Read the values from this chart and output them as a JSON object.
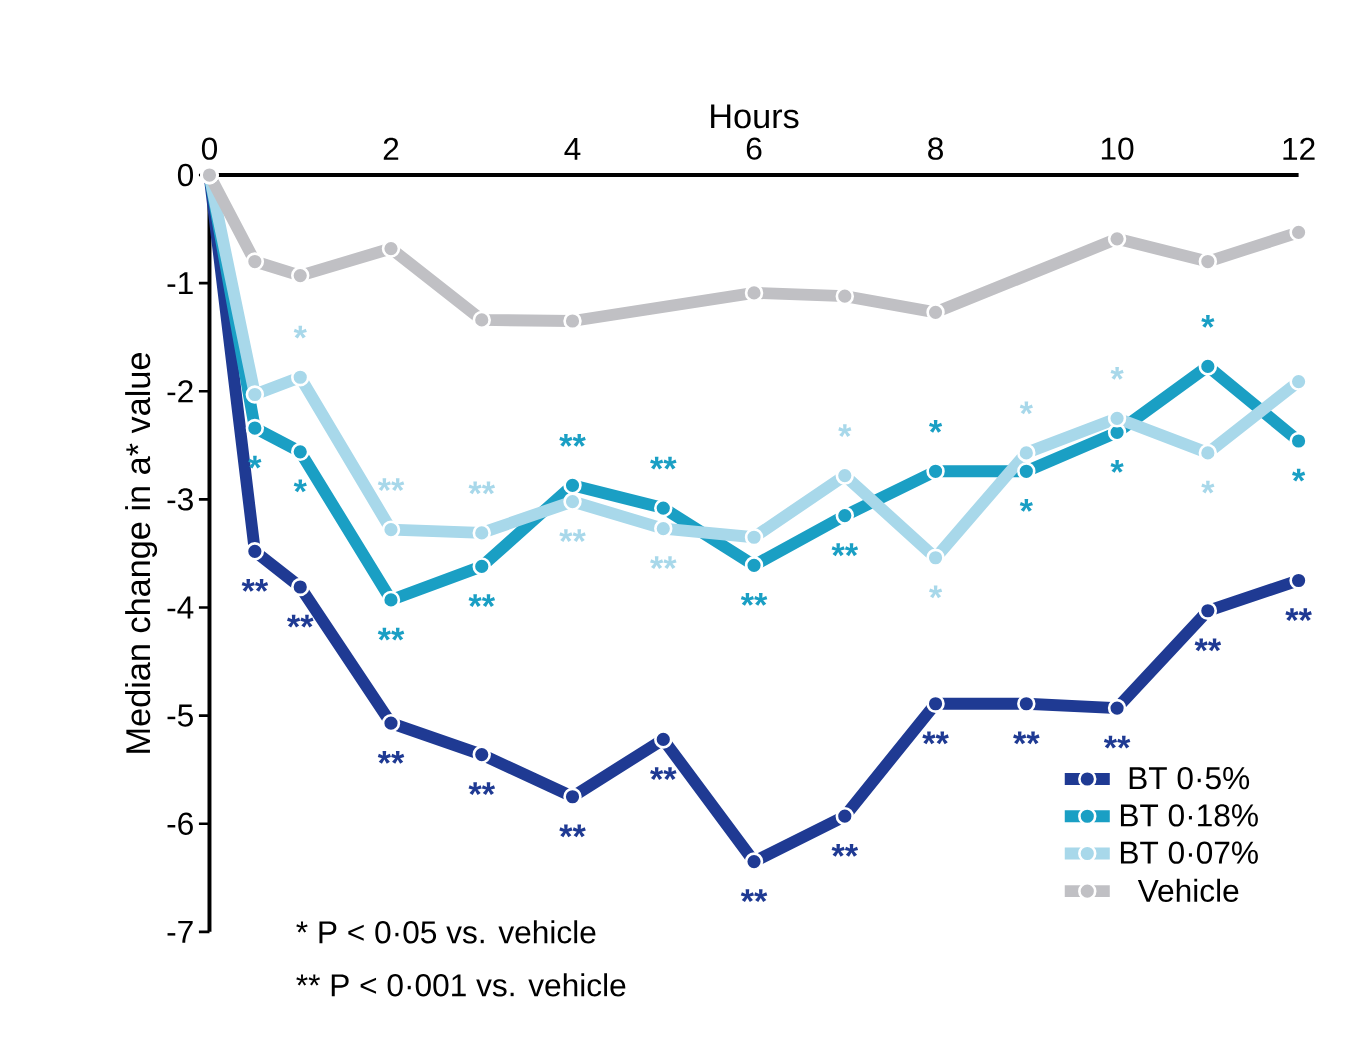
{
  "chart_data": {
    "type": "line",
    "xlabel": "Hours",
    "ylabel": "Median change in a* value",
    "x": [
      0,
      0.5,
      1,
      2,
      3,
      4,
      5,
      6,
      7,
      8,
      9,
      10,
      11,
      12
    ],
    "xlim": [
      0,
      12
    ],
    "xticks": [
      0,
      2,
      4,
      6,
      8,
      10,
      12
    ],
    "ylim": [
      -7,
      0
    ],
    "yticks": [
      -7,
      -6,
      -5,
      -4,
      -3,
      -2,
      -1,
      0
    ],
    "marker": "circle",
    "line_style": "solid",
    "legend": "bottom right",
    "grid": false,
    "series": [
      {
        "name": "BT 0·5%",
        "color": "#1f3a93",
        "values": [
          0,
          -3.48,
          -3.81,
          -5.07,
          -5.36,
          -5.75,
          -5.22,
          -6.35,
          -5.93,
          -4.89,
          -4.89,
          -4.93,
          -4.03,
          -3.75
        ]
      },
      {
        "name": "BT 0·18%",
        "color": "#1a9fc4",
        "values": [
          0,
          -2.34,
          -2.56,
          -3.93,
          -3.62,
          -2.87,
          -3.08,
          -3.61,
          -3.15,
          -2.74,
          -2.74,
          -2.38,
          -1.77,
          -2.46
        ]
      },
      {
        "name": "BT 0·07%",
        "color": "#a8d8ea",
        "values": [
          0,
          -2.03,
          -1.87,
          -3.28,
          -3.31,
          -3.02,
          -3.27,
          -3.35,
          -2.78,
          -3.54,
          -2.57,
          -2.25,
          -2.57,
          -1.91
        ]
      },
      {
        "name": "Vehicle",
        "color": "#c0c0c4",
        "x": [
          0,
          0.5,
          1,
          2,
          3,
          4,
          6,
          7,
          8,
          10,
          11,
          12
        ],
        "values": [
          0,
          -0.8,
          -0.93,
          -0.68,
          -1.34,
          -1.35,
          -1.09,
          -1.12,
          -1.27,
          -0.59,
          -0.8,
          -0.53
        ]
      }
    ],
    "annotations": [
      "* P < 0·05 vs. vehicle",
      "** P < 0·001 vs. vehicle",
      {
        "text": "**",
        "x": 0.5,
        "y": -3.48
      },
      {
        "text": "**",
        "x": 1,
        "y": -3.81
      },
      {
        "text": "**",
        "x": 2,
        "y": -5.07
      },
      {
        "text": "**",
        "x": 3,
        "y": -5.36
      },
      {
        "text": "**",
        "x": 4,
        "y": -5.75
      },
      {
        "text": "**",
        "x": 5,
        "y": -5.22
      },
      {
        "text": "**",
        "x": 6,
        "y": -6.35
      },
      {
        "text": "**",
        "x": 7,
        "y": -5.93
      },
      {
        "text": "**",
        "x": 8,
        "y": -4.89
      },
      {
        "text": "**",
        "x": 9,
        "y": -4.89
      },
      {
        "text": "**",
        "x": 10,
        "y": -4.93
      },
      {
        "text": "**",
        "x": 11,
        "y": -4.03
      },
      {
        "text": "**",
        "x": 12,
        "y": -3.75
      },
      {
        "text": "*",
        "x": 0.5,
        "y": -2.34
      },
      {
        "text": "*",
        "x": 1,
        "y": -2.56
      },
      {
        "text": "**",
        "x": 2,
        "y": -3.93
      },
      {
        "text": "**",
        "x": 3,
        "y": -3.62
      },
      {
        "text": "**",
        "x": 4,
        "y": -2.87
      },
      {
        "text": "**",
        "x": 5,
        "y": -3.08
      },
      {
        "text": "**",
        "x": 6,
        "y": -3.61
      },
      {
        "text": "**",
        "x": 7,
        "y": -3.15
      },
      {
        "text": "*",
        "x": 8,
        "y": -2.74
      },
      {
        "text": "*",
        "x": 9,
        "y": -2.74
      },
      {
        "text": "*",
        "x": 10,
        "y": -2.38
      },
      {
        "text": "*",
        "x": 11,
        "y": -1.77
      },
      {
        "text": "*",
        "x": 12,
        "y": -2.46
      },
      {
        "text": "*",
        "x": 1,
        "y": -1.87
      },
      {
        "text": "**",
        "x": 2,
        "y": -3.28
      },
      {
        "text": "**",
        "x": 3,
        "y": -3.31
      },
      {
        "text": "**",
        "x": 4,
        "y": -3.02
      },
      {
        "text": "**",
        "x": 5,
        "y": -3.27
      },
      {
        "text": "*",
        "x": 7,
        "y": -2.78
      },
      {
        "text": "*",
        "x": 8,
        "y": -3.54
      },
      {
        "text": "*",
        "x": 9,
        "y": -2.57
      },
      {
        "text": "*",
        "x": 10,
        "y": -2.25
      },
      {
        "text": "*",
        "x": 11,
        "y": -2.57
      }
    ]
  }
}
